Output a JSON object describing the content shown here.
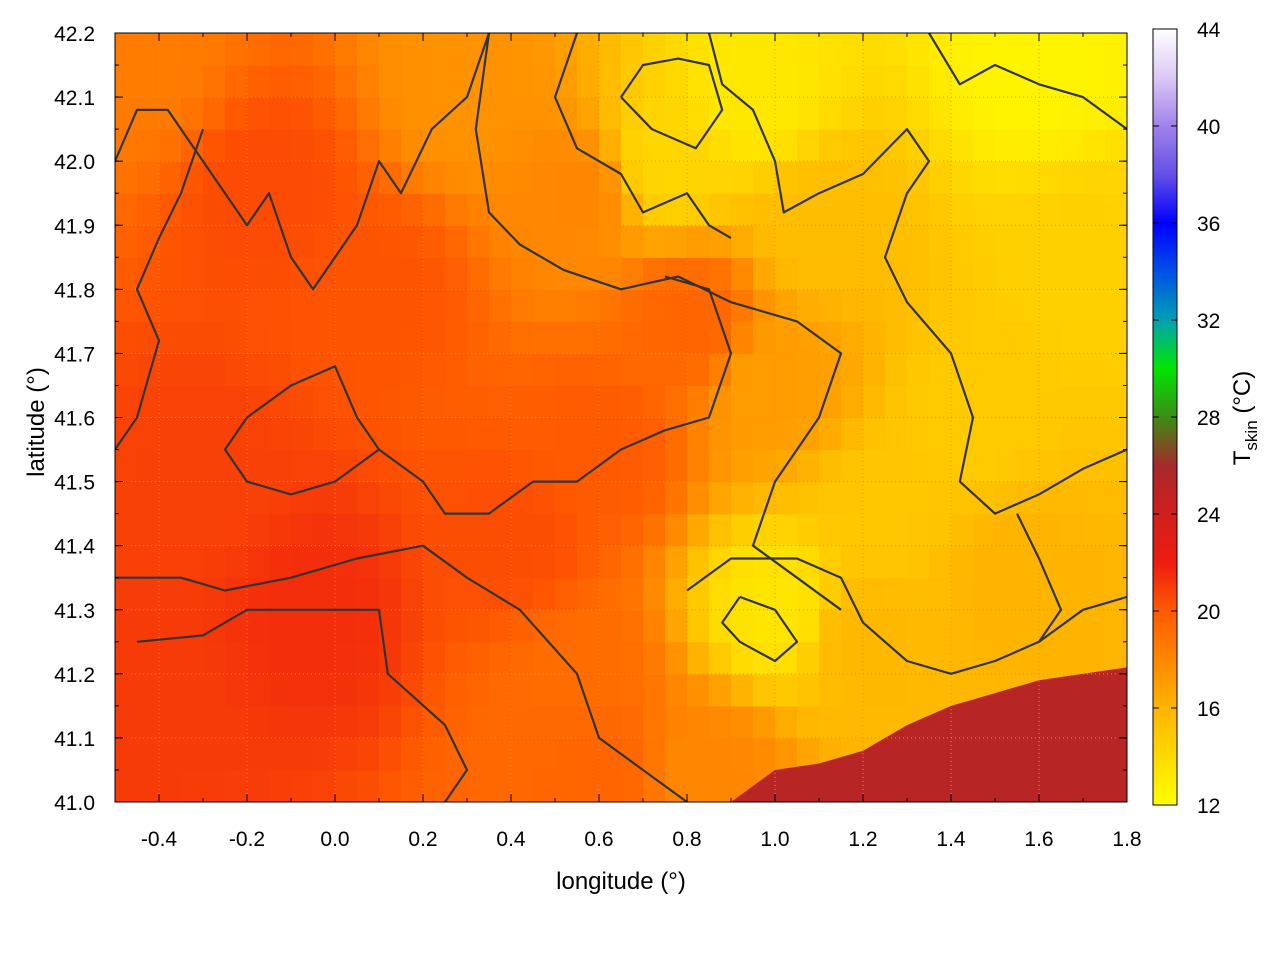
{
  "chart_data": {
    "type": "heatmap",
    "xlabel": "longitude (°)",
    "ylabel": "latitude (°)",
    "colorbar_label_main": "T",
    "colorbar_label_sub": "skin",
    "colorbar_label_unit": " (°C)",
    "xlim": [
      -0.5,
      1.8
    ],
    "ylim": [
      41.0,
      42.2
    ],
    "x_ticks": [
      -0.4,
      -0.2,
      0.0,
      0.2,
      0.4,
      0.6,
      0.8,
      1.0,
      1.2,
      1.4,
      1.6,
      1.8
    ],
    "x_tick_labels": [
      "-0.4",
      "-0.2",
      "0.0",
      "0.2",
      "0.4",
      "0.6",
      "0.8",
      "1.0",
      "1.2",
      "1.4",
      "1.6",
      "1.8"
    ],
    "y_ticks": [
      41.0,
      41.1,
      41.2,
      41.3,
      41.4,
      41.5,
      41.6,
      41.7,
      41.8,
      41.9,
      42.0,
      42.1,
      42.2
    ],
    "y_tick_labels": [
      "41.0",
      "41.1",
      "41.2",
      "41.3",
      "41.4",
      "41.5",
      "41.6",
      "41.7",
      "41.8",
      "41.9",
      "42.0",
      "42.1",
      "42.2"
    ],
    "color_range": [
      12,
      44
    ],
    "color_ticks": [
      12,
      16,
      20,
      24,
      28,
      32,
      36,
      40,
      44
    ],
    "color_tick_labels": [
      "12",
      "16",
      "20",
      "24",
      "28",
      "32",
      "36",
      "40",
      "44"
    ],
    "colormap": [
      {
        "value": 12,
        "color": "#ffff00"
      },
      {
        "value": 16,
        "color": "#ffb400"
      },
      {
        "value": 20,
        "color": "#ff5a00"
      },
      {
        "value": 22,
        "color": "#ee1c10"
      },
      {
        "value": 24.5,
        "color": "#c82020"
      },
      {
        "value": 26,
        "color": "#a52a2a"
      },
      {
        "value": 28,
        "color": "#3c8c14"
      },
      {
        "value": 30,
        "color": "#00e600"
      },
      {
        "value": 32,
        "color": "#00a0b4"
      },
      {
        "value": 34,
        "color": "#0050e6"
      },
      {
        "value": 36,
        "color": "#0000ff"
      },
      {
        "value": 38,
        "color": "#6450e6"
      },
      {
        "value": 40,
        "color": "#a082eb"
      },
      {
        "value": 42,
        "color": "#dcc8f5"
      },
      {
        "value": 44,
        "color": "#ffffff"
      }
    ],
    "grid": true,
    "contour_color": "#333333",
    "field_description": "cooler (~13-16 °C) in the north-east highlands, warmer (~19-22 °C) over the western plains, sea surface ~25 °C in the south-east corner",
    "temperature_anchors": [
      {
        "lon": 1.6,
        "lat": 42.15,
        "t": 12.6
      },
      {
        "lon": 0.95,
        "lat": 42.1,
        "t": 13.2
      },
      {
        "lon": 0.75,
        "lat": 42.0,
        "t": 14.2
      },
      {
        "lon": 1.0,
        "lat": 41.3,
        "t": 13.4
      },
      {
        "lon": 1.45,
        "lat": 41.6,
        "t": 14.8
      },
      {
        "lon": 1.7,
        "lat": 41.85,
        "t": 14.5
      },
      {
        "lon": 1.1,
        "lat": 41.9,
        "t": 15.5
      },
      {
        "lon": 0.3,
        "lat": 42.1,
        "t": 17.5
      },
      {
        "lon": 0.1,
        "lat": 41.8,
        "t": 20.2
      },
      {
        "lon": -0.15,
        "lat": 41.95,
        "t": 20.5
      },
      {
        "lon": -0.3,
        "lat": 41.5,
        "t": 20.8
      },
      {
        "lon": -0.05,
        "lat": 41.3,
        "t": 21.4
      },
      {
        "lon": -0.45,
        "lat": 41.15,
        "t": 21.0
      },
      {
        "lon": 0.6,
        "lat": 41.55,
        "t": 20.0
      },
      {
        "lon": 0.4,
        "lat": 41.4,
        "t": 20.4
      },
      {
        "lon": 0.55,
        "lat": 41.2,
        "t": 19.2
      },
      {
        "lon": 0.85,
        "lat": 41.05,
        "t": 18.0
      },
      {
        "lon": 0.6,
        "lat": 41.05,
        "t": 19.5
      },
      {
        "lon": 1.2,
        "lat": 41.25,
        "t": 15.8
      },
      {
        "lon": 1.55,
        "lat": 41.35,
        "t": 16.0
      },
      {
        "lon": 0.8,
        "lat": 41.75,
        "t": 19.5
      },
      {
        "lon": 1.0,
        "lat": 41.65,
        "t": 17.0
      },
      {
        "lon": -0.45,
        "lat": 42.15,
        "t": 18.5
      },
      {
        "lon": 0.55,
        "lat": 41.95,
        "t": 18.0
      },
      {
        "lon": 1.25,
        "lat": 41.45,
        "t": 15.0
      }
    ],
    "sea_region": {
      "description": "sea surface in south-east corner, coastline from (0.9, 41.0) rising to (1.8, 41.21)",
      "t": 25.2,
      "coastline": [
        [
          0.9,
          41.0
        ],
        [
          1.0,
          41.05
        ],
        [
          1.1,
          41.06
        ],
        [
          1.2,
          41.08
        ],
        [
          1.3,
          41.12
        ],
        [
          1.4,
          41.15
        ],
        [
          1.5,
          41.17
        ],
        [
          1.6,
          41.19
        ],
        [
          1.7,
          41.2
        ],
        [
          1.8,
          41.21
        ]
      ]
    },
    "contours": [
      [
        [
          -0.45,
          41.25
        ],
        [
          -0.3,
          41.26
        ],
        [
          -0.2,
          41.3
        ],
        [
          -0.05,
          41.3
        ],
        [
          0.1,
          41.3
        ],
        [
          0.12,
          41.2
        ],
        [
          0.25,
          41.12
        ],
        [
          0.3,
          41.05
        ],
        [
          0.25,
          41.0
        ]
      ],
      [
        [
          -0.5,
          41.35
        ],
        [
          -0.35,
          41.35
        ],
        [
          -0.25,
          41.33
        ],
        [
          -0.1,
          41.35
        ],
        [
          0.05,
          41.38
        ],
        [
          0.2,
          41.4
        ],
        [
          0.3,
          41.35
        ],
        [
          0.42,
          41.3
        ],
        [
          0.55,
          41.2
        ],
        [
          0.6,
          41.1
        ],
        [
          0.7,
          41.05
        ],
        [
          0.8,
          41.0
        ]
      ],
      [
        [
          -0.5,
          42.0
        ],
        [
          -0.45,
          42.08
        ],
        [
          -0.38,
          42.08
        ],
        [
          -0.3,
          42.0
        ],
        [
          -0.25,
          41.95
        ],
        [
          -0.2,
          41.9
        ],
        [
          -0.15,
          41.95
        ],
        [
          -0.1,
          41.85
        ],
        [
          -0.05,
          41.8
        ],
        [
          0.05,
          41.9
        ],
        [
          0.1,
          42.0
        ],
        [
          0.15,
          41.95
        ],
        [
          0.22,
          42.05
        ],
        [
          0.3,
          42.1
        ],
        [
          0.35,
          42.2
        ]
      ],
      [
        [
          0.35,
          42.2
        ],
        [
          0.32,
          42.05
        ],
        [
          0.35,
          41.92
        ],
        [
          0.42,
          41.87
        ],
        [
          0.52,
          41.83
        ],
        [
          0.65,
          41.8
        ],
        [
          0.78,
          41.82
        ],
        [
          0.9,
          41.78
        ],
        [
          1.05,
          41.75
        ],
        [
          1.15,
          41.7
        ],
        [
          1.1,
          41.6
        ],
        [
          1.0,
          41.5
        ],
        [
          0.95,
          41.4
        ],
        [
          1.05,
          41.35
        ],
        [
          1.15,
          41.3
        ]
      ],
      [
        [
          0.55,
          42.2
        ],
        [
          0.5,
          42.1
        ],
        [
          0.55,
          42.02
        ],
        [
          0.65,
          41.98
        ],
        [
          0.7,
          41.92
        ],
        [
          0.8,
          41.95
        ],
        [
          0.85,
          41.9
        ],
        [
          0.9,
          41.88
        ]
      ],
      [
        [
          0.65,
          42.1
        ],
        [
          0.72,
          42.05
        ],
        [
          0.82,
          42.02
        ],
        [
          0.88,
          42.08
        ],
        [
          0.85,
          42.15
        ],
        [
          0.78,
          42.16
        ],
        [
          0.7,
          42.15
        ],
        [
          0.65,
          42.1
        ]
      ],
      [
        [
          0.85,
          42.2
        ],
        [
          0.88,
          42.12
        ],
        [
          0.95,
          42.08
        ],
        [
          1.0,
          42.0
        ],
        [
          1.02,
          41.92
        ],
        [
          1.1,
          41.95
        ],
        [
          1.2,
          41.98
        ],
        [
          1.3,
          42.05
        ],
        [
          1.35,
          42.0
        ],
        [
          1.3,
          41.95
        ],
        [
          1.25,
          41.85
        ],
        [
          1.3,
          41.78
        ],
        [
          1.4,
          41.7
        ],
        [
          1.45,
          41.6
        ],
        [
          1.42,
          41.5
        ],
        [
          1.5,
          41.45
        ],
        [
          1.6,
          41.48
        ],
        [
          1.7,
          41.52
        ],
        [
          1.8,
          41.55
        ]
      ],
      [
        [
          1.35,
          42.2
        ],
        [
          1.42,
          42.12
        ],
        [
          1.5,
          42.15
        ],
        [
          1.6,
          42.12
        ],
        [
          1.7,
          42.1
        ],
        [
          1.8,
          42.05
        ]
      ],
      [
        [
          0.92,
          41.32
        ],
        [
          1.0,
          41.3
        ],
        [
          1.05,
          41.25
        ],
        [
          1.0,
          41.22
        ],
        [
          0.92,
          41.25
        ],
        [
          0.88,
          41.28
        ],
        [
          0.92,
          41.32
        ]
      ],
      [
        [
          0.8,
          41.33
        ],
        [
          0.9,
          41.38
        ],
        [
          1.05,
          41.38
        ],
        [
          1.15,
          41.35
        ],
        [
          1.2,
          41.28
        ],
        [
          1.3,
          41.22
        ],
        [
          1.4,
          41.2
        ],
        [
          1.5,
          41.22
        ],
        [
          1.6,
          41.25
        ],
        [
          1.7,
          41.3
        ],
        [
          1.8,
          41.32
        ]
      ],
      [
        [
          0.1,
          41.55
        ],
        [
          0.2,
          41.5
        ],
        [
          0.25,
          41.45
        ],
        [
          0.35,
          41.45
        ],
        [
          0.45,
          41.5
        ],
        [
          0.55,
          41.5
        ],
        [
          0.65,
          41.55
        ],
        [
          0.75,
          41.58
        ],
        [
          0.85,
          41.6
        ],
        [
          0.9,
          41.7
        ],
        [
          0.85,
          41.8
        ],
        [
          0.75,
          41.82
        ]
      ],
      [
        [
          -0.2,
          41.6
        ],
        [
          -0.1,
          41.65
        ],
        [
          0.0,
          41.68
        ],
        [
          0.05,
          41.6
        ],
        [
          0.1,
          41.55
        ],
        [
          0.0,
          41.5
        ],
        [
          -0.1,
          41.48
        ],
        [
          -0.2,
          41.5
        ],
        [
          -0.25,
          41.55
        ],
        [
          -0.2,
          41.6
        ]
      ],
      [
        [
          1.55,
          41.45
        ],
        [
          1.6,
          41.38
        ],
        [
          1.65,
          41.3
        ],
        [
          1.6,
          41.25
        ]
      ],
      [
        [
          -0.5,
          41.55
        ],
        [
          -0.45,
          41.6
        ],
        [
          -0.4,
          41.72
        ],
        [
          -0.45,
          41.8
        ],
        [
          -0.4,
          41.88
        ],
        [
          -0.35,
          41.95
        ],
        [
          -0.3,
          42.05
        ]
      ]
    ]
  }
}
